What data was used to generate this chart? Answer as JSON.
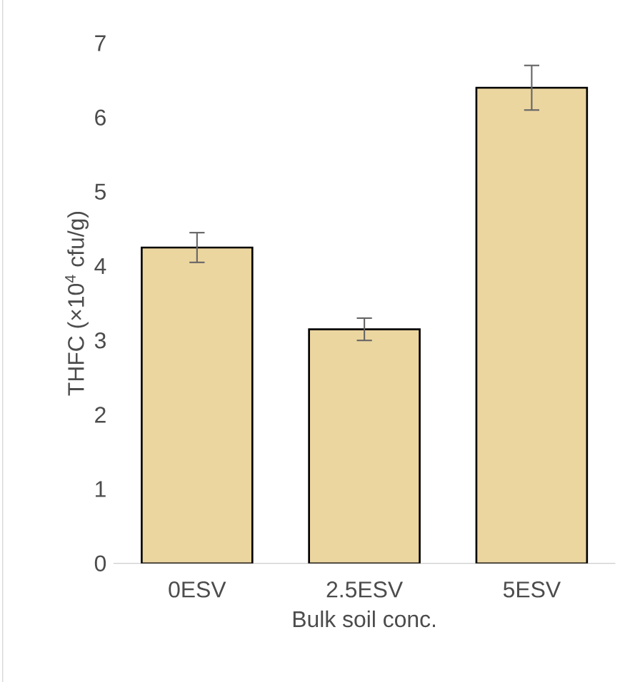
{
  "chart_data": {
    "type": "bar",
    "xlabel": "Bulk soil conc.",
    "ylabel": "THFC (×10$^{4}$ cfu/g)",
    "categories": [
      "0ESV",
      "2.5ESV",
      "5ESV"
    ],
    "values": [
      4.25,
      3.15,
      6.4
    ],
    "errors": [
      0.2,
      0.15,
      0.3
    ],
    "color": "#ecd6a0",
    "ylim": [
      0,
      7
    ],
    "yticks": [
      0,
      1,
      2,
      3,
      4,
      5,
      6,
      7
    ]
  }
}
